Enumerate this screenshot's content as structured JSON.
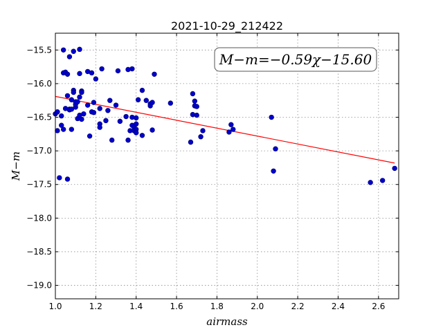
{
  "chart_data": {
    "type": "scatter",
    "title": "2021-10-29_212422",
    "xlabel": "airmass",
    "ylabel": "M−m",
    "xlim": [
      1.0,
      2.7
    ],
    "ylim": [
      -15.25,
      -19.2
    ],
    "y_inverted": true,
    "grid": true,
    "xticks": [
      1.0,
      1.2,
      1.4,
      1.6,
      1.8,
      2.0,
      2.2,
      2.4,
      2.6
    ],
    "xtick_labels": [
      "1.0",
      "1.2",
      "1.4",
      "1.6",
      "1.8",
      "2.0",
      "2.2",
      "2.4",
      "2.6"
    ],
    "yticks": [
      -15.5,
      -16.0,
      -16.5,
      -17.0,
      -17.5,
      -18.0,
      -18.5,
      -19.0
    ],
    "ytick_labels": [
      "−15.5",
      "−16.0",
      "−16.5",
      "−17.0",
      "−17.5",
      "−18.0",
      "−18.5",
      "−19.0"
    ],
    "annotation": "M−m=−0.59χ−15.60",
    "fit": {
      "slope": -0.59,
      "intercept": -15.6,
      "x_range": [
        1.0,
        2.68
      ],
      "color": "#ff0000"
    },
    "marker_color": "#0000cc",
    "marker_edge": "#000066",
    "points": [
      [
        1.0,
        -16.45
      ],
      [
        1.01,
        -16.42
      ],
      [
        1.01,
        -16.7
      ],
      [
        1.02,
        -17.4
      ],
      [
        1.03,
        -16.48
      ],
      [
        1.03,
        -16.62
      ],
      [
        1.04,
        -16.68
      ],
      [
        1.04,
        -15.5
      ],
      [
        1.04,
        -15.84
      ],
      [
        1.05,
        -16.37
      ],
      [
        1.05,
        -15.83
      ],
      [
        1.06,
        -15.86
      ],
      [
        1.06,
        -17.42
      ],
      [
        1.06,
        -16.18
      ],
      [
        1.07,
        -15.6
      ],
      [
        1.07,
        -16.38
      ],
      [
        1.07,
        -16.39
      ],
      [
        1.08,
        -16.24
      ],
      [
        1.08,
        -16.68
      ],
      [
        1.08,
        -16.38
      ],
      [
        1.09,
        -16.1
      ],
      [
        1.09,
        -16.13
      ],
      [
        1.09,
        -15.52
      ],
      [
        1.1,
        -16.35
      ],
      [
        1.1,
        -16.31
      ],
      [
        1.1,
        -16.27
      ],
      [
        1.11,
        -16.27
      ],
      [
        1.11,
        -16.52
      ],
      [
        1.12,
        -16.47
      ],
      [
        1.12,
        -16.2
      ],
      [
        1.12,
        -15.85
      ],
      [
        1.12,
        -15.49
      ],
      [
        1.13,
        -16.53
      ],
      [
        1.13,
        -16.11
      ],
      [
        1.13,
        -16.13
      ],
      [
        1.14,
        -16.45
      ],
      [
        1.16,
        -15.82
      ],
      [
        1.16,
        -16.32
      ],
      [
        1.17,
        -16.78
      ],
      [
        1.18,
        -15.84
      ],
      [
        1.18,
        -16.42
      ],
      [
        1.19,
        -16.28
      ],
      [
        1.19,
        -16.43
      ],
      [
        1.2,
        -15.93
      ],
      [
        1.22,
        -16.37
      ],
      [
        1.22,
        -16.6
      ],
      [
        1.22,
        -16.65
      ],
      [
        1.23,
        -15.78
      ],
      [
        1.25,
        -16.55
      ],
      [
        1.26,
        -16.4
      ],
      [
        1.27,
        -16.25
      ],
      [
        1.28,
        -16.84
      ],
      [
        1.3,
        -16.32
      ],
      [
        1.31,
        -15.81
      ],
      [
        1.32,
        -16.56
      ],
      [
        1.35,
        -16.49
      ],
      [
        1.36,
        -15.79
      ],
      [
        1.36,
        -16.84
      ],
      [
        1.37,
        -16.7
      ],
      [
        1.38,
        -15.78
      ],
      [
        1.38,
        -16.5
      ],
      [
        1.38,
        -16.62
      ],
      [
        1.39,
        -16.65
      ],
      [
        1.39,
        -16.7
      ],
      [
        1.4,
        -16.51
      ],
      [
        1.4,
        -16.6
      ],
      [
        1.4,
        -16.68
      ],
      [
        1.4,
        -16.73
      ],
      [
        1.41,
        -16.24
      ],
      [
        1.43,
        -16.1
      ],
      [
        1.43,
        -16.77
      ],
      [
        1.45,
        -16.25
      ],
      [
        1.47,
        -16.3
      ],
      [
        1.47,
        -16.33
      ],
      [
        1.48,
        -16.28
      ],
      [
        1.48,
        -16.69
      ],
      [
        1.49,
        -15.86
      ],
      [
        1.57,
        -16.29
      ],
      [
        1.67,
        -16.87
      ],
      [
        1.68,
        -16.15
      ],
      [
        1.68,
        -16.46
      ],
      [
        1.69,
        -16.26
      ],
      [
        1.69,
        -16.33
      ],
      [
        1.7,
        -16.34
      ],
      [
        1.7,
        -16.47
      ],
      [
        1.72,
        -16.79
      ],
      [
        1.73,
        -16.7
      ],
      [
        1.86,
        -16.72
      ],
      [
        1.87,
        -16.61
      ],
      [
        1.88,
        -16.68
      ],
      [
        2.07,
        -16.5
      ],
      [
        2.08,
        -17.3
      ],
      [
        2.09,
        -16.97
      ],
      [
        2.56,
        -17.47
      ],
      [
        2.62,
        -17.44
      ],
      [
        2.68,
        -17.26
      ]
    ]
  }
}
